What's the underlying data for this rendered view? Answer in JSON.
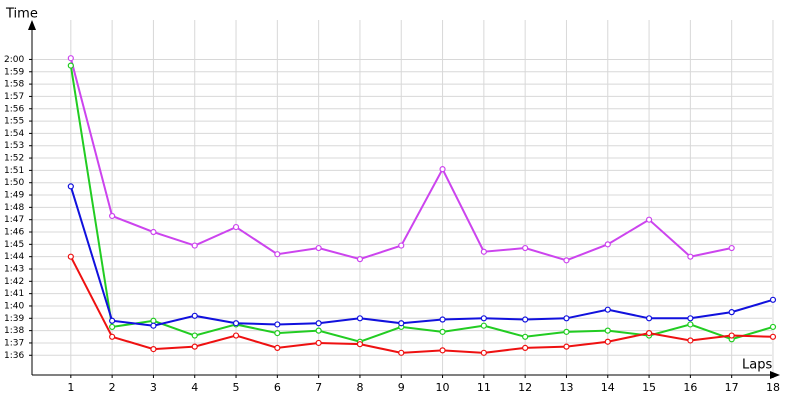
{
  "chart_data": {
    "type": "line",
    "y_label": "Time",
    "x_label": "Laps",
    "grid": true,
    "x": [
      1,
      2,
      3,
      4,
      5,
      6,
      7,
      8,
      9,
      10,
      11,
      12,
      13,
      14,
      15,
      16,
      17,
      18
    ],
    "xlim": [
      0.06,
      18.17
    ],
    "xticks": [
      1,
      2,
      3,
      4,
      5,
      6,
      7,
      8,
      9,
      10,
      11,
      12,
      13,
      14,
      15,
      16,
      17,
      18
    ],
    "ylim": [
      94.4,
      123.2
    ],
    "yticks": [
      {
        "value": 96,
        "label": "1:36"
      },
      {
        "value": 97,
        "label": "1:37"
      },
      {
        "value": 98,
        "label": "1:38"
      },
      {
        "value": 99,
        "label": "1:39"
      },
      {
        "value": 100,
        "label": "1:40"
      },
      {
        "value": 101,
        "label": "1:41"
      },
      {
        "value": 102,
        "label": "1:42"
      },
      {
        "value": 103,
        "label": "1:43"
      },
      {
        "value": 104,
        "label": "1:44"
      },
      {
        "value": 105,
        "label": "1:45"
      },
      {
        "value": 106,
        "label": "1:46"
      },
      {
        "value": 107,
        "label": "1:47"
      },
      {
        "value": 108,
        "label": "1:48"
      },
      {
        "value": 109,
        "label": "1:49"
      },
      {
        "value": 110,
        "label": "1:50"
      },
      {
        "value": 111,
        "label": "1:51"
      },
      {
        "value": 112,
        "label": "1:52"
      },
      {
        "value": 113,
        "label": "1:53"
      },
      {
        "value": 114,
        "label": "1:54"
      },
      {
        "value": 115,
        "label": "1:55"
      },
      {
        "value": 116,
        "label": "1:56"
      },
      {
        "value": 117,
        "label": "1:57"
      },
      {
        "value": 118,
        "label": "1:58"
      },
      {
        "value": 119,
        "label": "1:59"
      },
      {
        "value": 120,
        "label": "2:00"
      }
    ],
    "series": [
      {
        "color": "#cc44ee",
        "values": [
          120.1,
          107.3,
          106.0,
          104.9,
          106.4,
          104.2,
          104.7,
          103.8,
          104.9,
          111.1,
          104.4,
          104.7,
          103.7,
          105.0,
          107.0,
          104.0,
          104.7,
          null
        ]
      },
      {
        "color": "#22cc22",
        "values": [
          119.5,
          98.3,
          98.8,
          97.6,
          98.5,
          97.8,
          98.0,
          97.1,
          98.3,
          97.9,
          98.4,
          97.5,
          97.9,
          98.0,
          97.6,
          98.5,
          97.3,
          98.3
        ]
      },
      {
        "color": "#1111dd",
        "values": [
          109.7,
          98.8,
          98.4,
          99.2,
          98.6,
          98.5,
          98.6,
          99.0,
          98.6,
          98.9,
          99.0,
          98.9,
          99.0,
          99.7,
          99.0,
          99.0,
          99.5,
          100.5
        ]
      },
      {
        "color": "#ee1111",
        "values": [
          104.0,
          97.5,
          96.5,
          96.7,
          97.6,
          96.6,
          97.0,
          96.9,
          96.2,
          96.4,
          96.2,
          96.6,
          96.7,
          97.1,
          97.8,
          97.2,
          97.6,
          97.5
        ]
      }
    ]
  }
}
